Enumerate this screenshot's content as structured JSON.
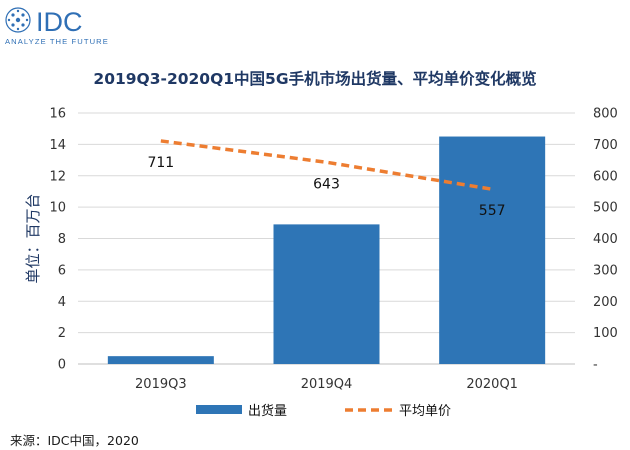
{
  "logo": {
    "brand": "IDC",
    "tagline": "ANALYZE THE FUTURE",
    "color": "#2f6fb5"
  },
  "source": "来源：IDC中国，2020",
  "colors": {
    "bar": "#2e75b6",
    "line": "#ed7d31",
    "title": "#1f3864",
    "axis_text": "#333333",
    "grid": "#d9d9d9"
  },
  "chart_data": {
    "type": "bar",
    "title": "2019Q3-2020Q1中国5G手机市场出货量、平均单价变化概览",
    "ylabel": "单位：百万台",
    "categories": [
      "2019Q3",
      "2019Q4",
      "2020Q1"
    ],
    "ylim": [
      0,
      16
    ],
    "y_ticks": [
      "0",
      "2",
      "4",
      "6",
      "8",
      "10",
      "12",
      "14",
      "16"
    ],
    "y2lim": [
      0,
      800
    ],
    "y2_ticks": [
      "-",
      "100",
      "200",
      "300",
      "400",
      "500",
      "600",
      "700",
      "800"
    ],
    "grid": true,
    "legend_position": "bottom",
    "series": [
      {
        "name": "出货量",
        "type": "bar",
        "axis": "left",
        "values": [
          0.5,
          8.9,
          14.5
        ]
      },
      {
        "name": "平均单价",
        "type": "line",
        "axis": "right",
        "style": "dashed",
        "values": [
          711,
          643,
          557
        ],
        "labels": [
          "711",
          "643",
          "557"
        ]
      }
    ]
  }
}
